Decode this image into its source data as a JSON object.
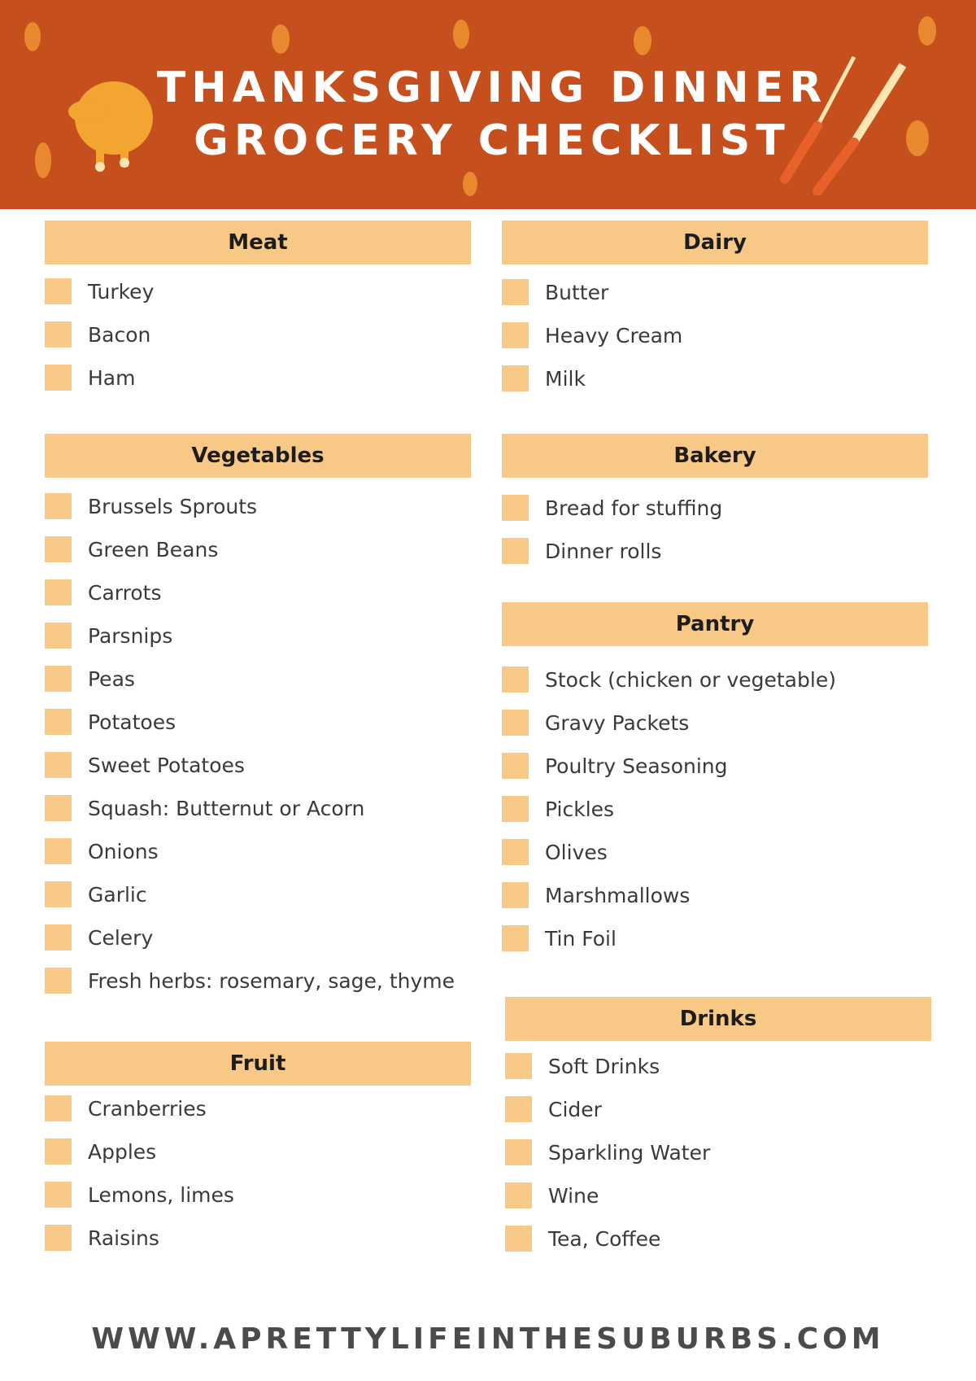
{
  "header": {
    "title_line1": "THANKSGIVING DINNER",
    "title_line2": "GROCERY CHECKLIST",
    "background": "#c64f1e",
    "accent": "#f8c887"
  },
  "sections": [
    {
      "title": "Meat",
      "items": [
        "Turkey",
        "Bacon",
        "Ham"
      ]
    },
    {
      "title": "Dairy",
      "items": [
        "Butter",
        "Heavy Cream",
        "Milk"
      ]
    },
    {
      "title": "Vegetables",
      "items": [
        "Brussels Sprouts",
        "Green Beans",
        "Carrots",
        "Parsnips",
        "Peas",
        "Potatoes",
        "Sweet Potatoes",
        "Squash: Butternut or Acorn",
        "Onions",
        "Garlic",
        "Celery",
        "Fresh herbs: rosemary, sage, thyme"
      ]
    },
    {
      "title": "Bakery",
      "items": [
        "Bread for stuffing",
        "Dinner rolls"
      ]
    },
    {
      "title": "Pantry",
      "items": [
        "Stock (chicken or vegetable)",
        "Gravy Packets",
        "Poultry Seasoning",
        "Pickles",
        "Olives",
        "Marshmallows",
        "Tin Foil"
      ]
    },
    {
      "title": "Fruit",
      "items": [
        "Cranberries",
        "Apples",
        "Lemons, limes",
        "Raisins"
      ]
    },
    {
      "title": "Drinks",
      "items": [
        "Soft Drinks",
        "Cider",
        "Sparkling Water",
        "Wine",
        "Tea, Coffee"
      ]
    }
  ],
  "footer": {
    "url": "WWW.APRETTYLIFEINTHESUBURBS.COM"
  }
}
